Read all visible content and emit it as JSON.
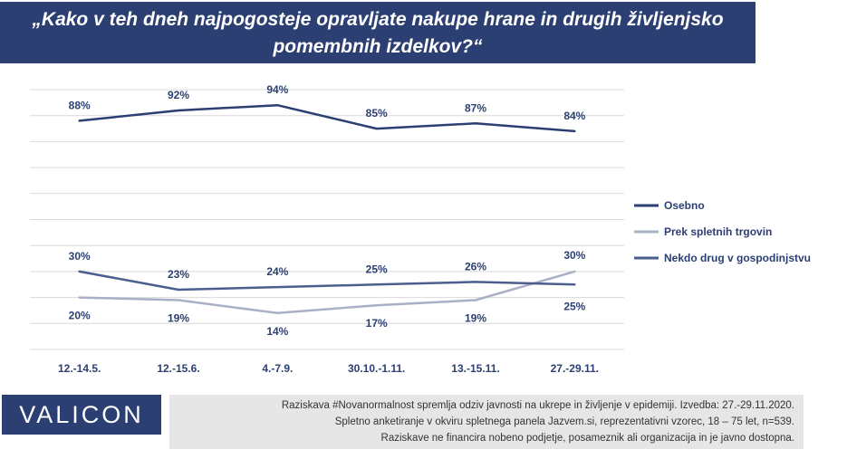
{
  "title": {
    "line1": "„Kako v teh dneh najpogosteje opravljate nakupe hrane in drugih življenjsko",
    "line2": "pomembnih izdelkov?“"
  },
  "chart_data": {
    "type": "line",
    "categories": [
      "12.-14.5.",
      "12.-15.6.",
      "4.-7.9.",
      "30.10.-1.11.",
      "13.-15.11.",
      "27.-29.11."
    ],
    "series": [
      {
        "name": "Osebno",
        "values": [
          88,
          92,
          94,
          85,
          87,
          84
        ],
        "color": "#2b3f72"
      },
      {
        "name": "Prek spletnih trgovin",
        "values": [
          20,
          19,
          14,
          17,
          19,
          30
        ],
        "color": "#a9b0c6"
      },
      {
        "name": "Nekdo drug v gospodinjstvu",
        "values": [
          30,
          23,
          24,
          25,
          26,
          25
        ],
        "color": "#4a5f8e"
      }
    ],
    "value_suffix": "%",
    "ylim": [
      0,
      100
    ],
    "grid": true,
    "legend": "right"
  },
  "footer": {
    "logo": "VALICON",
    "note_lines": [
      "Raziskava #Novanormalnost spremlja odziv javnosti na ukrepe in življenje v epidemiji. Izvedba: 27.-29.11.2020.",
      "Spletno anketiranje v okviru spletnega panela Jazvem.si, reprezentativni vzorec, 18 – 75 let, n=539.",
      "Raziskave ne financira nobeno podjetje, posameznik ali organizacija in je javno dostopna."
    ]
  }
}
